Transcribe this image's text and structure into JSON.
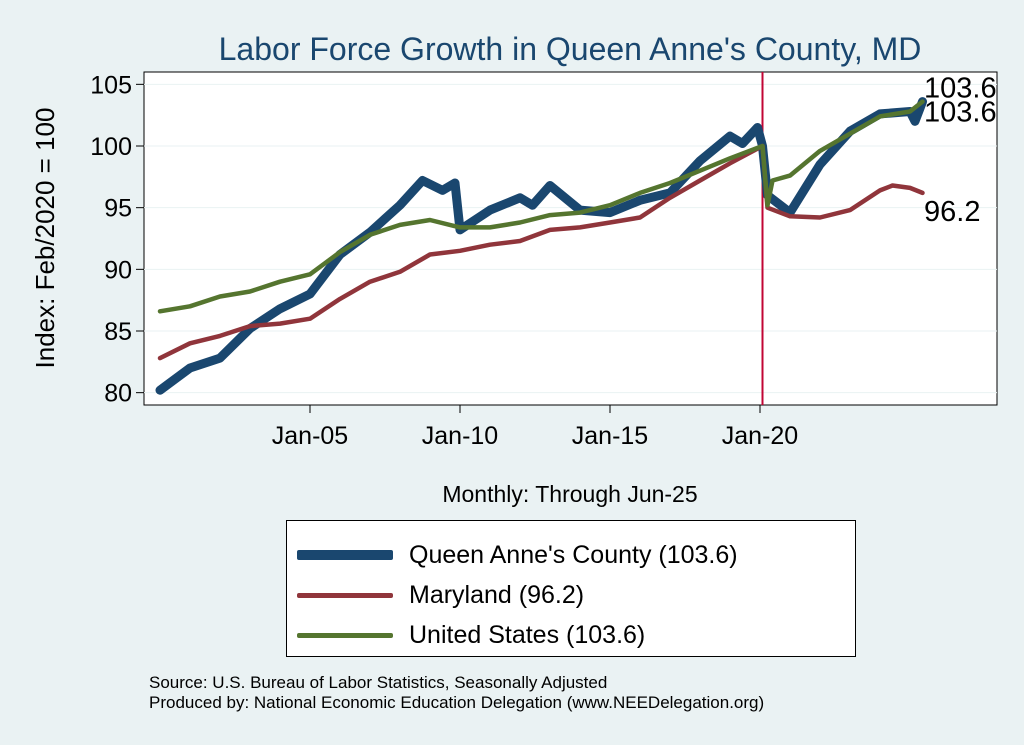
{
  "chart_data": {
    "type": "line",
    "title": "Labor Force Growth in Queen Anne's  County, MD",
    "ylabel": "Index: Feb/2020 = 100",
    "xlabel": "Monthly: Through Jun-25",
    "ylim": [
      79,
      106
    ],
    "yticks": [
      80,
      85,
      90,
      95,
      100,
      105
    ],
    "xtick_labels": [
      "Jan-05",
      "Jan-10",
      "Jan-15",
      "Jan-20"
    ],
    "reference_line": "Feb-20",
    "grid": true,
    "legend_position": "bottom",
    "series": [
      {
        "name": "Queen Anne's  County (103.6)",
        "color": "#1a476f",
        "end_label": "103.6",
        "points": [
          [
            "Jan-00",
            80.2
          ],
          [
            "Jan-01",
            82.0
          ],
          [
            "Jan-02",
            82.8
          ],
          [
            "Jan-03",
            85.2
          ],
          [
            "Jan-04",
            86.8
          ],
          [
            "Jan-05",
            88.0
          ],
          [
            "Jan-06",
            91.2
          ],
          [
            "Jan-07",
            93.0
          ],
          [
            "Jan-08",
            95.2
          ],
          [
            "Oct-08",
            97.2
          ],
          [
            "Jun-09",
            96.4
          ],
          [
            "Nov-09",
            97.0
          ],
          [
            "Jan-10",
            93.2
          ],
          [
            "Jan-11",
            94.8
          ],
          [
            "Jan-12",
            95.8
          ],
          [
            "Jun-12",
            95.2
          ],
          [
            "Jan-13",
            96.8
          ],
          [
            "Jan-14",
            94.8
          ],
          [
            "Jan-15",
            94.6
          ],
          [
            "Jan-16",
            95.6
          ],
          [
            "Jan-17",
            96.2
          ],
          [
            "Jan-18",
            98.8
          ],
          [
            "Jan-19",
            100.8
          ],
          [
            "Jun-19",
            100.2
          ],
          [
            "Dec-19",
            101.5
          ],
          [
            "Feb-20",
            100.0
          ],
          [
            "Apr-20",
            96.0
          ],
          [
            "Jan-21",
            94.6
          ],
          [
            "Jan-22",
            98.5
          ],
          [
            "Jan-23",
            101.2
          ],
          [
            "Jan-24",
            102.6
          ],
          [
            "Jan-25",
            102.8
          ],
          [
            "Mar-25",
            102.0
          ],
          [
            "Jun-25",
            103.6
          ]
        ]
      },
      {
        "name": "Maryland (96.2)",
        "color": "#90353b",
        "end_label": "96.2",
        "points": [
          [
            "Jan-00",
            82.8
          ],
          [
            "Jan-01",
            84.0
          ],
          [
            "Jan-02",
            84.6
          ],
          [
            "Jan-03",
            85.4
          ],
          [
            "Jan-04",
            85.6
          ],
          [
            "Jan-05",
            86.0
          ],
          [
            "Jan-06",
            87.6
          ],
          [
            "Jan-07",
            89.0
          ],
          [
            "Jan-08",
            89.8
          ],
          [
            "Jan-09",
            91.2
          ],
          [
            "Jan-10",
            91.5
          ],
          [
            "Jan-11",
            92.0
          ],
          [
            "Jan-12",
            92.3
          ],
          [
            "Jan-13",
            93.2
          ],
          [
            "Jan-14",
            93.4
          ],
          [
            "Jan-15",
            93.8
          ],
          [
            "Jan-16",
            94.2
          ],
          [
            "Jan-17",
            95.8
          ],
          [
            "Jan-18",
            97.2
          ],
          [
            "Jan-19",
            98.6
          ],
          [
            "Feb-20",
            100.0
          ],
          [
            "Apr-20",
            95.0
          ],
          [
            "Jan-21",
            94.3
          ],
          [
            "Jan-22",
            94.2
          ],
          [
            "Jan-23",
            94.8
          ],
          [
            "Jan-24",
            96.4
          ],
          [
            "Jun-24",
            96.8
          ],
          [
            "Jan-25",
            96.6
          ],
          [
            "Jun-25",
            96.2
          ]
        ]
      },
      {
        "name": "United States (103.6)",
        "color": "#55752f",
        "end_label": "103.6",
        "points": [
          [
            "Jan-00",
            86.6
          ],
          [
            "Jan-01",
            87.0
          ],
          [
            "Jan-02",
            87.8
          ],
          [
            "Jan-03",
            88.2
          ],
          [
            "Jan-04",
            89.0
          ],
          [
            "Jan-05",
            89.6
          ],
          [
            "Jan-06",
            91.4
          ],
          [
            "Jan-07",
            92.8
          ],
          [
            "Jan-08",
            93.6
          ],
          [
            "Jan-09",
            94.0
          ],
          [
            "Jan-10",
            93.4
          ],
          [
            "Jan-11",
            93.4
          ],
          [
            "Jan-12",
            93.8
          ],
          [
            "Jan-13",
            94.4
          ],
          [
            "Jan-14",
            94.6
          ],
          [
            "Jan-15",
            95.2
          ],
          [
            "Jan-16",
            96.2
          ],
          [
            "Jan-17",
            97.0
          ],
          [
            "Jan-18",
            98.0
          ],
          [
            "Jan-19",
            99.0
          ],
          [
            "Feb-20",
            100.0
          ],
          [
            "Apr-20",
            95.2
          ],
          [
            "Jun-20",
            97.2
          ],
          [
            "Jan-21",
            97.6
          ],
          [
            "Jan-22",
            99.6
          ],
          [
            "Jan-23",
            101.0
          ],
          [
            "Jan-24",
            102.4
          ],
          [
            "Jan-25",
            102.8
          ],
          [
            "Jun-25",
            103.6
          ]
        ]
      }
    ],
    "source_lines": [
      "Source: U.S. Bureau of Labor Statistics, Seasonally Adjusted",
      "Produced by: National Economic Education Delegation (www.NEEDelegation.org)"
    ]
  },
  "colors": {
    "background": "#eaf2f3",
    "plot_area": "#ffffff",
    "grid": "#eaf2f3",
    "title": "#1a476f",
    "reference_line": "#c10534"
  }
}
